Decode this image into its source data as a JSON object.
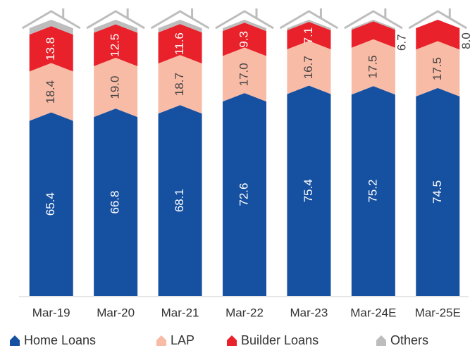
{
  "chart_data": {
    "type": "stacked_bar",
    "categories": [
      "Mar-19",
      "Mar-20",
      "Mar-21",
      "Mar-22",
      "Mar-23",
      "Mar-24E",
      "Mar-25E"
    ],
    "series": [
      {
        "name": "Home Loans",
        "color": "#1650a0",
        "values": [
          65.4,
          66.8,
          68.1,
          72.6,
          75.4,
          75.2,
          74.5
        ],
        "value_labels": [
          "65.4",
          "66.8",
          "68.1",
          "72.6",
          "75.4",
          "75.2",
          "74.5"
        ]
      },
      {
        "name": "LAP",
        "color": "#f8bba6",
        "values": [
          18.4,
          19.0,
          18.7,
          17.0,
          16.7,
          17.5,
          17.5
        ],
        "value_labels": [
          "18.4",
          "19.0",
          "18.7",
          "17.0",
          "16.7",
          "17.5",
          "17.5"
        ]
      },
      {
        "name": "Builder Loans",
        "color": "#e8212a",
        "values": [
          13.8,
          12.5,
          11.6,
          9.3,
          7.1,
          6.7,
          8.0
        ],
        "value_labels": [
          "13.8",
          "12.5",
          "11.6",
          "9.3",
          "7.1",
          "6.7",
          "8.0"
        ]
      },
      {
        "name": "Others",
        "color": "#bdbdbd",
        "values": [
          2.4,
          1.7,
          1.6,
          1.1,
          0.8,
          0.6,
          0
        ]
      }
    ],
    "ylim": [
      0,
      100
    ]
  }
}
